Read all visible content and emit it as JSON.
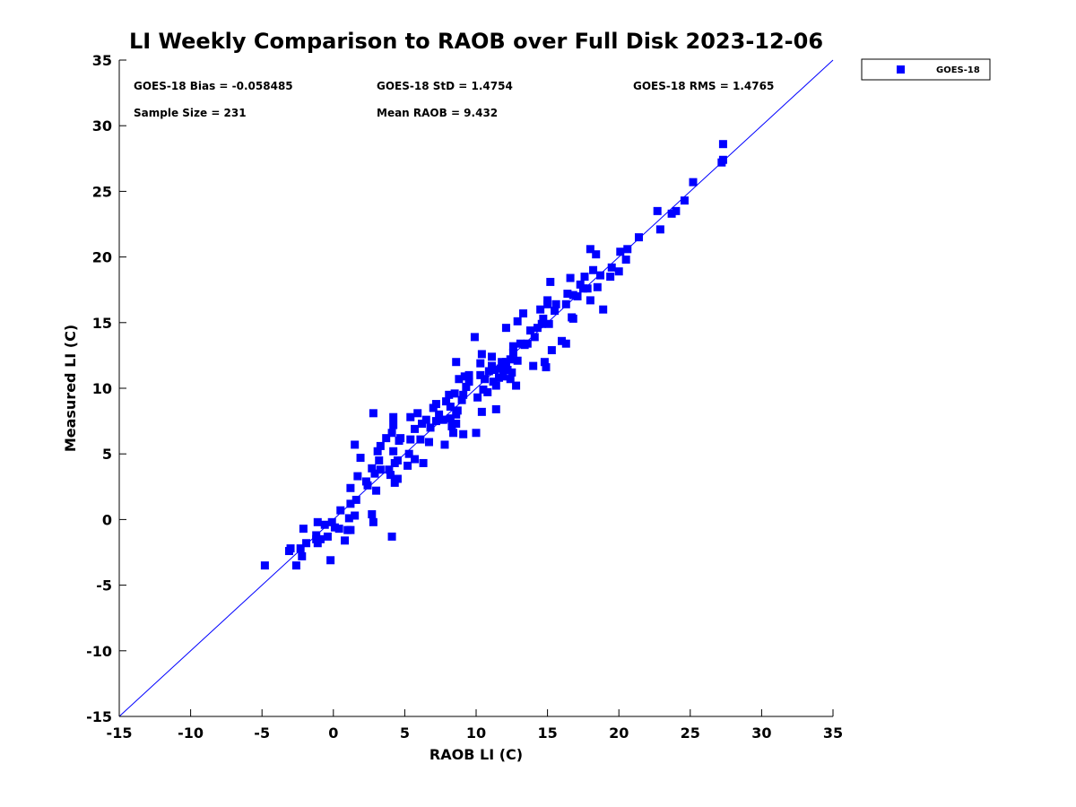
{
  "chart_data": {
    "type": "scatter",
    "title": "LI Weekly Comparison to RAOB over Full Disk 2023-12-06",
    "xlabel": "RAOB LI (C)",
    "ylabel": "Measured LI (C)",
    "xlim": [
      -15,
      35
    ],
    "ylim": [
      -15,
      35
    ],
    "xticks": [
      -15,
      -10,
      -5,
      0,
      5,
      10,
      15,
      20,
      25,
      30,
      35
    ],
    "yticks": [
      -15,
      -10,
      -5,
      0,
      5,
      10,
      15,
      20,
      25,
      30,
      35
    ],
    "grid": false,
    "legend": {
      "position": "outside-top-right",
      "entries": [
        "GOES-18"
      ]
    },
    "annotations": {
      "bias": "GOES-18 Bias = -0.058485",
      "std": "GOES-18 StD = 1.4754",
      "rms": "GOES-18 RMS = 1.4765",
      "sample": "Sample Size = 231",
      "mean": "Mean RAOB = 9.432"
    },
    "reference_line": "y = x",
    "color": "#0000ff",
    "series": [
      {
        "name": "GOES-18",
        "points": [
          [
            -4.8,
            -3.5
          ],
          [
            -3.1,
            -2.4
          ],
          [
            -3.0,
            -2.2
          ],
          [
            -2.6,
            -3.5
          ],
          [
            -2.3,
            -2.2
          ],
          [
            -2.2,
            -2.8
          ],
          [
            -2.1,
            -0.7
          ],
          [
            -1.9,
            -1.8
          ],
          [
            -1.2,
            -1.5
          ],
          [
            -1.2,
            -1.2
          ],
          [
            -1.1,
            -1.8
          ],
          [
            -1.1,
            -0.2
          ],
          [
            -0.9,
            -1.5
          ],
          [
            -0.6,
            -0.4
          ],
          [
            -0.4,
            -1.3
          ],
          [
            -0.2,
            -3.1
          ],
          [
            -0.1,
            -0.2
          ],
          [
            0.1,
            -0.6
          ],
          [
            0.4,
            -0.7
          ],
          [
            0.5,
            0.7
          ],
          [
            0.8,
            -1.6
          ],
          [
            1.0,
            -0.8
          ],
          [
            1.2,
            -0.8
          ],
          [
            1.1,
            0.1
          ],
          [
            1.2,
            2.4
          ],
          [
            1.2,
            1.2
          ],
          [
            1.5,
            0.3
          ],
          [
            1.6,
            1.5
          ],
          [
            1.7,
            3.3
          ],
          [
            1.5,
            5.7
          ],
          [
            1.9,
            4.7
          ],
          [
            2.3,
            2.9
          ],
          [
            2.4,
            2.6
          ],
          [
            2.7,
            3.9
          ],
          [
            2.7,
            0.4
          ],
          [
            2.8,
            -0.2
          ],
          [
            2.8,
            8.1
          ],
          [
            2.9,
            3.5
          ],
          [
            3.0,
            2.2
          ],
          [
            3.1,
            5.2
          ],
          [
            3.2,
            4.5
          ],
          [
            3.3,
            5.6
          ],
          [
            3.3,
            3.8
          ],
          [
            3.7,
            6.2
          ],
          [
            3.9,
            3.8
          ],
          [
            4.0,
            3.4
          ],
          [
            4.1,
            -1.3
          ],
          [
            4.1,
            6.6
          ],
          [
            4.2,
            5.2
          ],
          [
            4.2,
            7.8
          ],
          [
            4.2,
            7.2
          ],
          [
            4.3,
            2.8
          ],
          [
            4.3,
            4.3
          ],
          [
            4.5,
            3.1
          ],
          [
            4.5,
            4.5
          ],
          [
            4.6,
            6.0
          ],
          [
            4.7,
            6.2
          ],
          [
            5.2,
            4.1
          ],
          [
            5.3,
            5.0
          ],
          [
            5.4,
            6.1
          ],
          [
            5.4,
            7.8
          ],
          [
            5.7,
            4.6
          ],
          [
            5.7,
            6.9
          ],
          [
            5.9,
            8.1
          ],
          [
            6.1,
            6.1
          ],
          [
            6.2,
            7.3
          ],
          [
            6.3,
            4.3
          ],
          [
            6.5,
            7.6
          ],
          [
            6.7,
            5.9
          ],
          [
            6.8,
            7.0
          ],
          [
            7.0,
            8.5
          ],
          [
            7.2,
            8.8
          ],
          [
            7.2,
            7.5
          ],
          [
            7.4,
            8.0
          ],
          [
            7.6,
            7.6
          ],
          [
            7.7,
            7.6
          ],
          [
            7.8,
            5.7
          ],
          [
            7.9,
            9.0
          ],
          [
            8.1,
            9.5
          ],
          [
            8.2,
            7.7
          ],
          [
            8.2,
            8.6
          ],
          [
            8.3,
            7.1
          ],
          [
            8.4,
            6.6
          ],
          [
            8.5,
            9.6
          ],
          [
            8.6,
            7.3
          ],
          [
            8.6,
            12.0
          ],
          [
            8.6,
            8.0
          ],
          [
            8.7,
            8.3
          ],
          [
            8.8,
            10.7
          ],
          [
            9.0,
            9.1
          ],
          [
            9.1,
            9.5
          ],
          [
            9.1,
            6.5
          ],
          [
            9.2,
            10.9
          ],
          [
            9.3,
            10.1
          ],
          [
            9.5,
            10.5
          ],
          [
            9.5,
            11.0
          ],
          [
            9.9,
            13.9
          ],
          [
            10.0,
            6.6
          ],
          [
            10.1,
            9.3
          ],
          [
            10.3,
            11.0
          ],
          [
            10.3,
            11.9
          ],
          [
            10.4,
            12.6
          ],
          [
            10.4,
            8.2
          ],
          [
            10.5,
            9.9
          ],
          [
            10.6,
            10.7
          ],
          [
            10.8,
            9.7
          ],
          [
            10.9,
            11.3
          ],
          [
            11.1,
            11.7
          ],
          [
            11.1,
            12.4
          ],
          [
            11.2,
            10.5
          ],
          [
            11.3,
            11.4
          ],
          [
            11.4,
            10.2
          ],
          [
            11.4,
            8.4
          ],
          [
            11.6,
            10.8
          ],
          [
            11.7,
            11.5
          ],
          [
            11.8,
            12.0
          ],
          [
            11.9,
            10.9
          ],
          [
            12.1,
            14.6
          ],
          [
            12.1,
            12.0
          ],
          [
            12.2,
            11.4
          ],
          [
            12.4,
            12.2
          ],
          [
            12.4,
            10.7
          ],
          [
            12.5,
            11.2
          ],
          [
            12.6,
            12.7
          ],
          [
            12.6,
            13.2
          ],
          [
            12.8,
            10.2
          ],
          [
            12.9,
            12.1
          ],
          [
            12.9,
            15.1
          ],
          [
            13.1,
            13.4
          ],
          [
            13.3,
            15.7
          ],
          [
            13.4,
            13.3
          ],
          [
            13.6,
            13.4
          ],
          [
            13.8,
            14.4
          ],
          [
            14.0,
            11.7
          ],
          [
            14.1,
            13.9
          ],
          [
            14.3,
            14.6
          ],
          [
            14.5,
            16.0
          ],
          [
            14.6,
            14.9
          ],
          [
            14.7,
            15.3
          ],
          [
            14.8,
            12.0
          ],
          [
            14.9,
            11.6
          ],
          [
            15.0,
            16.4
          ],
          [
            15.0,
            16.7
          ],
          [
            15.1,
            14.9
          ],
          [
            15.2,
            18.1
          ],
          [
            15.3,
            12.9
          ],
          [
            15.5,
            15.9
          ],
          [
            15.6,
            16.4
          ],
          [
            16.0,
            13.6
          ],
          [
            16.3,
            13.4
          ],
          [
            16.3,
            16.4
          ],
          [
            16.4,
            17.2
          ],
          [
            16.6,
            18.4
          ],
          [
            16.7,
            15.4
          ],
          [
            16.8,
            15.3
          ],
          [
            16.8,
            17.1
          ],
          [
            17.1,
            17.0
          ],
          [
            17.3,
            17.9
          ],
          [
            17.5,
            17.6
          ],
          [
            17.6,
            18.5
          ],
          [
            17.8,
            17.6
          ],
          [
            18.0,
            20.6
          ],
          [
            18.0,
            16.7
          ],
          [
            18.2,
            19.0
          ],
          [
            18.4,
            20.2
          ],
          [
            18.5,
            17.7
          ],
          [
            18.7,
            18.6
          ],
          [
            18.9,
            16.0
          ],
          [
            19.4,
            18.5
          ],
          [
            19.5,
            19.2
          ],
          [
            20.0,
            18.9
          ],
          [
            20.1,
            20.4
          ],
          [
            20.5,
            19.8
          ],
          [
            20.6,
            20.6
          ],
          [
            21.4,
            21.5
          ],
          [
            22.7,
            23.5
          ],
          [
            22.9,
            22.1
          ],
          [
            23.7,
            23.3
          ],
          [
            24.0,
            23.5
          ],
          [
            24.6,
            24.3
          ],
          [
            25.2,
            25.7
          ],
          [
            27.2,
            27.2
          ],
          [
            27.3,
            27.4
          ],
          [
            27.3,
            28.6
          ]
        ]
      }
    ]
  }
}
